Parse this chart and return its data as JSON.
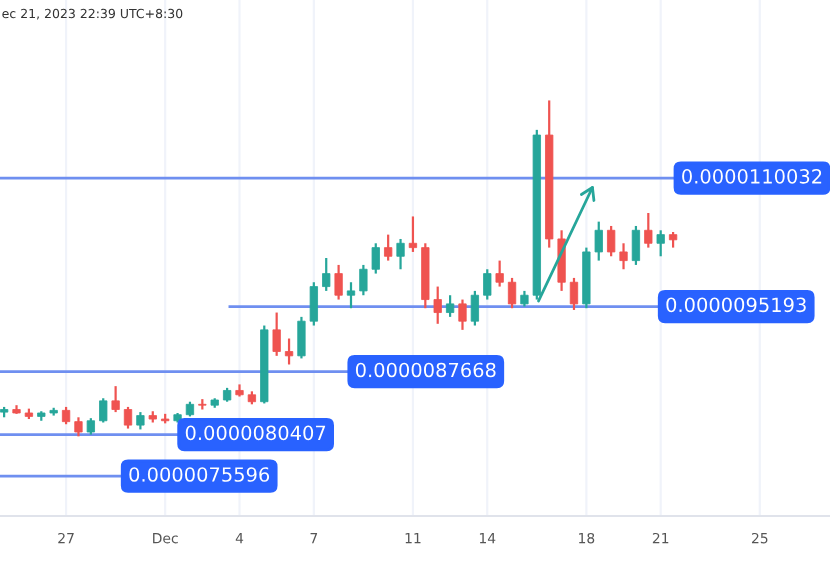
{
  "chart_data": {
    "type": "candlestick",
    "annotations": [
      "ec 21, 2023 22:39 UTC+8:30"
    ],
    "x": [
      "2023-11-24T12:00",
      "2023-11-25T00:00",
      "2023-11-25T12:00",
      "2023-11-26T00:00",
      "2023-11-26T12:00",
      "2023-11-27T00:00",
      "2023-11-27T12:00",
      "2023-11-28T00:00",
      "2023-11-28T12:00",
      "2023-11-29T00:00",
      "2023-11-29T12:00",
      "2023-11-30T00:00",
      "2023-11-30T12:00",
      "2023-12-01T00:00",
      "2023-12-01T12:00",
      "2023-12-02T00:00",
      "2023-12-02T12:00",
      "2023-12-03T00:00",
      "2023-12-03T12:00",
      "2023-12-04T00:00",
      "2023-12-04T12:00",
      "2023-12-05T00:00",
      "2023-12-05T12:00",
      "2023-12-06T00:00",
      "2023-12-06T12:00",
      "2023-12-07T00:00",
      "2023-12-07T12:00",
      "2023-12-08T00:00",
      "2023-12-08T12:00",
      "2023-12-09T00:00",
      "2023-12-09T12:00",
      "2023-12-10T00:00",
      "2023-12-10T12:00",
      "2023-12-11T00:00",
      "2023-12-11T12:00",
      "2023-12-12T00:00",
      "2023-12-12T12:00",
      "2023-12-13T00:00",
      "2023-12-13T12:00",
      "2023-12-14T00:00",
      "2023-12-14T12:00",
      "2023-12-15T00:00",
      "2023-12-15T12:00",
      "2023-12-16T00:00",
      "2023-12-16T12:00",
      "2023-12-17T00:00",
      "2023-12-17T12:00",
      "2023-12-18T00:00",
      "2023-12-18T12:00",
      "2023-12-19T00:00",
      "2023-12-19T12:00",
      "2023-12-20T00:00",
      "2023-12-20T12:00",
      "2023-12-21T00:00",
      "2023-12-21T12:00"
    ],
    "ohlc": [
      [
        8.3e-06,
        8.36e-06,
        8.24e-06,
        8.33e-06
      ],
      [
        8.33e-06,
        8.38e-06,
        8.28e-06,
        8.29e-06
      ],
      [
        8.29e-06,
        8.34e-06,
        8.22e-06,
        8.25e-06
      ],
      [
        8.25e-06,
        8.31e-06,
        8.2e-06,
        8.29e-06
      ],
      [
        8.29e-06,
        8.35e-06,
        8.26e-06,
        8.32e-06
      ],
      [
        8.32e-06,
        8.36e-06,
        8.16e-06,
        8.19e-06
      ],
      [
        8.19e-06,
        8.24e-06,
        8.02e-06,
        8.07e-06
      ],
      [
        8.07e-06,
        8.23e-06,
        8.04e-06,
        8.2e-06
      ],
      [
        8.2e-06,
        8.46e-06,
        8.18e-06,
        8.43e-06
      ],
      [
        8.43e-06,
        8.6e-06,
        8.3e-06,
        8.33e-06
      ],
      [
        8.33e-06,
        8.36e-06,
        8.11e-06,
        8.15e-06
      ],
      [
        8.15e-06,
        8.3e-06,
        8.1e-06,
        8.26e-06
      ],
      [
        8.26e-06,
        8.31e-06,
        8.18e-06,
        8.22e-06
      ],
      [
        8.22e-06,
        8.28e-06,
        8.17e-06,
        8.2e-06
      ],
      [
        8.2e-06,
        8.29e-06,
        8.18e-06,
        8.27e-06
      ],
      [
        8.27e-06,
        8.42e-06,
        8.25e-06,
        8.39e-06
      ],
      [
        8.39e-06,
        8.45e-06,
        8.33e-06,
        8.38e-06
      ],
      [
        8.38e-06,
        8.46e-06,
        8.35e-06,
        8.44e-06
      ],
      [
        8.44e-06,
        8.58e-06,
        8.42e-06,
        8.55e-06
      ],
      [
        8.55e-06,
        8.62e-06,
        8.48e-06,
        8.5e-06
      ],
      [
        8.5e-06,
        8.54e-06,
        8.39e-06,
        8.42e-06
      ],
      [
        8.42e-06,
        9.3e-06,
        8.4e-06,
        9.25e-06
      ],
      [
        9.25e-06,
        9.45e-06,
        8.95e-06,
        9e-06
      ],
      [
        9e-06,
        9.15e-06,
        8.85e-06,
        8.95e-06
      ],
      [
        8.95e-06,
        9.4e-06,
        8.92e-06,
        9.35e-06
      ],
      [
        9.35e-06,
        9.8e-06,
        9.3e-06,
        9.75e-06
      ],
      [
        9.75e-06,
        1.008e-05,
        9.7e-06,
        9.9e-06
      ],
      [
        9.9e-06,
        1e-05,
        9.6e-06,
        9.65e-06
      ],
      [
        9.65e-06,
        9.8e-06,
        9.5e-06,
        9.7e-06
      ],
      [
        9.7e-06,
        1e-05,
        9.65e-06,
        9.95e-06
      ],
      [
        9.95e-06,
        1.025e-05,
        9.9e-06,
        1.02e-05
      ],
      [
        1.02e-05,
        1.035e-05,
        1.005e-05,
        1.01e-05
      ],
      [
        1.01e-05,
        1.03e-05,
        9.95e-06,
        1.025e-05
      ],
      [
        1.025e-05,
        1.056e-05,
        1.015e-05,
        1.02e-05
      ],
      [
        1.02e-05,
        1.025e-05,
        9.5e-06,
        9.6e-06
      ],
      [
        9.6e-06,
        9.75e-06,
        9.32e-06,
        9.45e-06
      ],
      [
        9.45e-06,
        9.65e-06,
        9.4e-06,
        9.55e-06
      ],
      [
        9.55e-06,
        9.6e-06,
        9.25e-06,
        9.35e-06
      ],
      [
        9.35e-06,
        9.7e-06,
        9.3e-06,
        9.65e-06
      ],
      [
        9.65e-06,
        9.95e-06,
        9.6e-06,
        9.9e-06
      ],
      [
        9.9e-06,
        1.005e-05,
        9.75e-06,
        9.8e-06
      ],
      [
        9.8e-06,
        9.85e-06,
        9.5e-06,
        9.55e-06
      ],
      [
        9.55e-06,
        9.7e-06,
        9.52e-06,
        9.65e-06
      ],
      [
        9.65e-06,
        1.156e-05,
        9.6e-06,
        1.15e-05
      ],
      [
        1.15e-05,
        1.19e-05,
        1.02e-05,
        1.03e-05
      ],
      [
        1.03e-05,
        1.04e-05,
        9.7e-06,
        9.8e-06
      ],
      [
        9.8e-06,
        9.85e-06,
        9.48e-06,
        9.55e-06
      ],
      [
        9.55e-06,
        1.02e-05,
        9.5e-06,
        1.015e-05
      ],
      [
        1.015e-05,
        1.05e-05,
        1.005e-05,
        1.04e-05
      ],
      [
        1.04e-05,
        1.045e-05,
        1.01e-05,
        1.015e-05
      ],
      [
        1.015e-05,
        1.025e-05,
        9.95e-06,
        1.005e-05
      ],
      [
        1.005e-05,
        1.045e-05,
        1e-05,
        1.04e-05
      ],
      [
        1.04e-05,
        1.06e-05,
        1.02e-05,
        1.025e-05
      ],
      [
        1.025e-05,
        1.04e-05,
        1.01e-05,
        1.035e-05
      ],
      [
        1.035e-05,
        1.038e-05,
        1.02e-05,
        1.029e-05
      ]
    ],
    "xlim": [
      "2023-11-24T08:00",
      "2023-12-27T20:00"
    ],
    "xticks": [
      {
        "value": "2023-11-27",
        "label": "27"
      },
      {
        "value": "2023-12-01",
        "label": "Dec"
      },
      {
        "value": "2023-12-04",
        "label": "4"
      },
      {
        "value": "2023-12-07",
        "label": "7"
      },
      {
        "value": "2023-12-11",
        "label": "11"
      },
      {
        "value": "2023-12-14",
        "label": "14"
      },
      {
        "value": "2023-12-18",
        "label": "18"
      },
      {
        "value": "2023-12-21",
        "label": "21"
      },
      {
        "value": "2023-12-25",
        "label": "25"
      }
    ],
    "ylim": [
      7.1e-06,
      1.306e-05
    ],
    "tick_labels": "x",
    "grid": true,
    "ref_lines": [
      {
        "axis": "y",
        "value": 1.10032e-05,
        "label": "0.0000110032",
        "color": "#6f8ff0"
      },
      {
        "axis": "y",
        "value": 9.5193e-06,
        "label": "0.0000095193",
        "color": "#6f8ff0"
      },
      {
        "axis": "y",
        "value": 8.7668e-06,
        "label": "0.0000087668",
        "color": "#6f8ff0"
      },
      {
        "axis": "y",
        "value": 8.0407e-06,
        "label": "0.0000080407",
        "color": "#6f8ff0"
      },
      {
        "axis": "y",
        "value": 7.5596e-06,
        "label": "0.0000075596",
        "color": "#6f8ff0"
      }
    ]
  }
}
